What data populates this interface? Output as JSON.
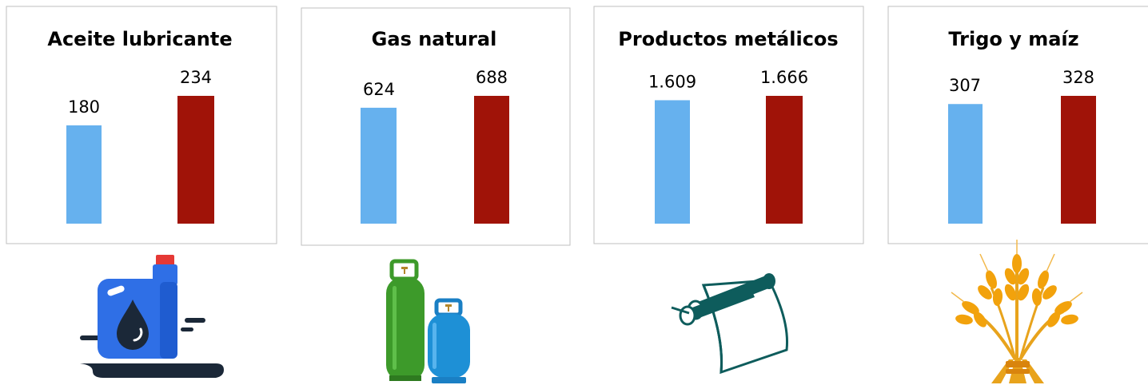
{
  "colors": {
    "series_a": "#66b1ee",
    "series_b": "#a01308",
    "frame": "#bfbfbf"
  },
  "chart_data": [
    {
      "type": "bar",
      "title": "Aceite lubricante",
      "categories": [
        "",
        ""
      ],
      "values": [
        180,
        234
      ],
      "value_labels": [
        "180",
        "234"
      ],
      "icon": "lubricant-oil-can-icon"
    },
    {
      "type": "bar",
      "title": "Gas natural",
      "categories": [
        "",
        ""
      ],
      "values": [
        624,
        688
      ],
      "value_labels": [
        "624",
        "688"
      ],
      "icon": "gas-cylinders-icon"
    },
    {
      "type": "bar",
      "title": "Productos metálicos",
      "categories": [
        "",
        ""
      ],
      "values": [
        1609,
        1666
      ],
      "value_labels": [
        "1.609",
        "1.666"
      ],
      "icon": "metal-pipes-sheet-icon"
    },
    {
      "type": "bar",
      "title": "Trigo y maíz",
      "categories": [
        "",
        ""
      ],
      "values": [
        307,
        328
      ],
      "value_labels": [
        "307",
        "328"
      ],
      "icon": "wheat-sheaf-icon"
    }
  ]
}
